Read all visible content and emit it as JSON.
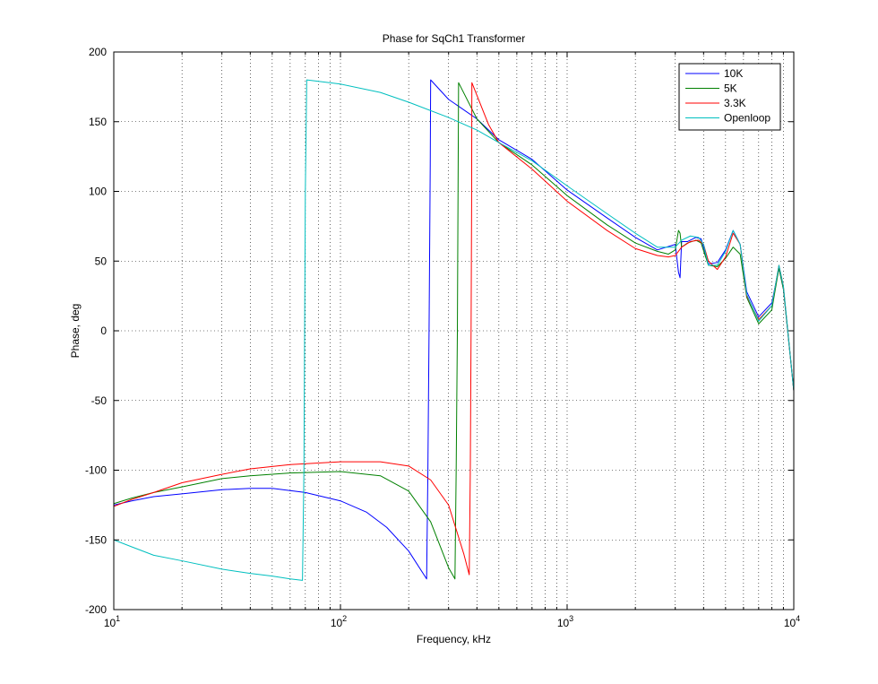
{
  "chart_data": {
    "type": "line",
    "title": "Phase for SqCh1 Transformer",
    "xlabel": "Frequency, kHz",
    "ylabel": "Phase, deg",
    "xscale": "log",
    "xlim": [
      10,
      10000
    ],
    "ylim": [
      -200,
      200
    ],
    "grid": true,
    "legend_position": "top-right",
    "x_tick_labels": [
      {
        "base": "10",
        "exp": "1"
      },
      {
        "base": "10",
        "exp": "2"
      },
      {
        "base": "10",
        "exp": "3"
      },
      {
        "base": "10",
        "exp": "4"
      }
    ],
    "y_ticks": [
      200,
      150,
      100,
      50,
      0,
      -50,
      -100,
      -150,
      -200
    ],
    "y_tick_labels": [
      "200",
      "150",
      "100",
      "50",
      "0",
      "-50",
      "-100",
      "-150",
      "-200"
    ],
    "series": [
      {
        "name": "10K",
        "color": "#0000ff",
        "points": [
          [
            10,
            -125
          ],
          [
            12,
            -122
          ],
          [
            15,
            -119
          ],
          [
            20,
            -117
          ],
          [
            30,
            -114
          ],
          [
            40,
            -113
          ],
          [
            50,
            -113
          ],
          [
            70,
            -116
          ],
          [
            100,
            -122
          ],
          [
            130,
            -130
          ],
          [
            160,
            -141
          ],
          [
            200,
            -158
          ],
          [
            240,
            -178
          ],
          [
            243,
            -103
          ],
          [
            246,
            0
          ],
          [
            249,
            120
          ],
          [
            250,
            180
          ],
          [
            300,
            166
          ],
          [
            400,
            152
          ],
          [
            500,
            137
          ],
          [
            700,
            123
          ],
          [
            1000,
            101
          ],
          [
            1500,
            81
          ],
          [
            2000,
            67
          ],
          [
            2500,
            58
          ],
          [
            3000,
            62
          ],
          [
            3100,
            42
          ],
          [
            3150,
            38
          ],
          [
            3200,
            64
          ],
          [
            3400,
            64
          ],
          [
            3700,
            67
          ],
          [
            3900,
            66
          ],
          [
            4200,
            48
          ],
          [
            4600,
            49
          ],
          [
            5000,
            58
          ],
          [
            5400,
            72
          ],
          [
            5800,
            62
          ],
          [
            6200,
            28
          ],
          [
            7000,
            10
          ],
          [
            8000,
            20
          ],
          [
            8600,
            45
          ],
          [
            9000,
            30
          ],
          [
            10000,
            -43
          ]
        ]
      },
      {
        "name": "5K",
        "color": "#008000",
        "points": [
          [
            10,
            -124
          ],
          [
            12,
            -120
          ],
          [
            15,
            -116
          ],
          [
            20,
            -112
          ],
          [
            30,
            -106
          ],
          [
            40,
            -104
          ],
          [
            60,
            -102
          ],
          [
            100,
            -101
          ],
          [
            150,
            -104
          ],
          [
            200,
            -115
          ],
          [
            250,
            -137
          ],
          [
            300,
            -170
          ],
          [
            320,
            -178
          ],
          [
            324,
            -100
          ],
          [
            328,
            0
          ],
          [
            330,
            90
          ],
          [
            332,
            178
          ],
          [
            400,
            152
          ],
          [
            500,
            135
          ],
          [
            700,
            119
          ],
          [
            1000,
            97
          ],
          [
            1500,
            76
          ],
          [
            2000,
            63
          ],
          [
            2500,
            57
          ],
          [
            2800,
            55
          ],
          [
            3000,
            58
          ],
          [
            3100,
            72
          ],
          [
            3150,
            70
          ],
          [
            3200,
            60
          ],
          [
            3400,
            63
          ],
          [
            3700,
            65
          ],
          [
            3900,
            63
          ],
          [
            4200,
            47
          ],
          [
            4600,
            46
          ],
          [
            5000,
            52
          ],
          [
            5400,
            60
          ],
          [
            5800,
            55
          ],
          [
            6200,
            24
          ],
          [
            7000,
            5
          ],
          [
            8000,
            15
          ],
          [
            8600,
            45
          ],
          [
            9000,
            30
          ],
          [
            10000,
            -43
          ]
        ]
      },
      {
        "name": "3.3K",
        "color": "#ff0000",
        "points": [
          [
            10,
            -126
          ],
          [
            12,
            -121
          ],
          [
            15,
            -116
          ],
          [
            20,
            -109
          ],
          [
            30,
            -103
          ],
          [
            40,
            -99
          ],
          [
            60,
            -96
          ],
          [
            100,
            -94
          ],
          [
            150,
            -94
          ],
          [
            200,
            -97
          ],
          [
            250,
            -107
          ],
          [
            300,
            -125
          ],
          [
            350,
            -160
          ],
          [
            370,
            -175
          ],
          [
            374,
            -100
          ],
          [
            377,
            0
          ],
          [
            379,
            90
          ],
          [
            380,
            178
          ],
          [
            450,
            148
          ],
          [
            500,
            135
          ],
          [
            700,
            116
          ],
          [
            1000,
            93
          ],
          [
            1500,
            72
          ],
          [
            2000,
            59
          ],
          [
            2500,
            54
          ],
          [
            2800,
            53
          ],
          [
            3000,
            54
          ],
          [
            3200,
            60
          ],
          [
            3500,
            64
          ],
          [
            3800,
            65
          ],
          [
            4000,
            62
          ],
          [
            4200,
            50
          ],
          [
            4600,
            44
          ],
          [
            5000,
            53
          ],
          [
            5400,
            70
          ],
          [
            5800,
            62
          ],
          [
            6200,
            25
          ],
          [
            7000,
            8
          ],
          [
            8000,
            18
          ],
          [
            8600,
            47
          ],
          [
            9000,
            32
          ],
          [
            10000,
            -43
          ]
        ]
      },
      {
        "name": "Openloop",
        "color": "#00bfbf",
        "points": [
          [
            10,
            -150
          ],
          [
            12,
            -155
          ],
          [
            15,
            -161
          ],
          [
            20,
            -165
          ],
          [
            30,
            -171
          ],
          [
            40,
            -174
          ],
          [
            50,
            -176
          ],
          [
            60,
            -178
          ],
          [
            68,
            -179
          ],
          [
            69,
            -100
          ],
          [
            69.5,
            0
          ],
          [
            70,
            100
          ],
          [
            71,
            180
          ],
          [
            100,
            177
          ],
          [
            150,
            171
          ],
          [
            200,
            164
          ],
          [
            300,
            153
          ],
          [
            400,
            144
          ],
          [
            500,
            135
          ],
          [
            700,
            122
          ],
          [
            1000,
            104
          ],
          [
            1500,
            84
          ],
          [
            2000,
            70
          ],
          [
            2500,
            60
          ],
          [
            3000,
            60
          ],
          [
            3200,
            65
          ],
          [
            3500,
            68
          ],
          [
            3800,
            67
          ],
          [
            4000,
            62
          ],
          [
            4200,
            47
          ],
          [
            4600,
            47
          ],
          [
            5000,
            57
          ],
          [
            5400,
            72
          ],
          [
            5800,
            62
          ],
          [
            6200,
            26
          ],
          [
            7000,
            7
          ],
          [
            8000,
            18
          ],
          [
            8600,
            47
          ],
          [
            9000,
            32
          ],
          [
            10000,
            -43
          ]
        ]
      }
    ]
  }
}
